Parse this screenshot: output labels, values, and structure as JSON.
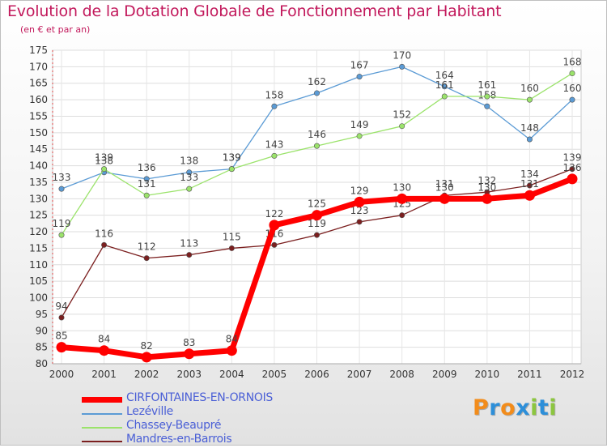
{
  "title": "Evolution de la Dotation Globale de Fonctionnement par Habitant",
  "subtitle": "(en € et par an)",
  "logo": {
    "letters": [
      "P",
      "r",
      "o",
      "x",
      "i",
      "t",
      "i"
    ],
    "colors": [
      "#f28c1b",
      "#2d8fd9",
      "#f28c1b",
      "#2d8fd9",
      "#8cc63f",
      "#2d8fd9",
      "#8cc63f"
    ]
  },
  "chart_data": {
    "type": "line",
    "title": "Evolution de la Dotation Globale de Fonctionnement par Habitant",
    "subtitle": "(en € et par an)",
    "x": [
      "2000",
      "2001",
      "2002",
      "2003",
      "2004",
      "2005",
      "2006",
      "2007",
      "2008",
      "2009",
      "2010",
      "2011",
      "2012"
    ],
    "ylim": [
      80,
      175
    ],
    "yticks": [
      80,
      85,
      90,
      95,
      100,
      105,
      110,
      115,
      120,
      125,
      130,
      135,
      140,
      145,
      150,
      155,
      160,
      165,
      170,
      175
    ],
    "grid": true,
    "legend": "bottom",
    "series": [
      {
        "name": "Lezéville",
        "color": "#5b9bd5",
        "values": [
          133,
          138,
          136,
          138,
          139,
          158,
          162,
          167,
          170,
          164,
          158,
          148,
          160
        ]
      },
      {
        "name": "Chassey-Beaupré",
        "color": "#9be36b",
        "values": [
          119,
          139,
          131,
          133,
          139,
          143,
          146,
          149,
          152,
          161,
          161,
          160,
          168
        ]
      },
      {
        "name": "Mandres-en-Barrois",
        "color": "#7b1f1f",
        "values": [
          94,
          116,
          112,
          113,
          115,
          116,
          119,
          123,
          125,
          131,
          132,
          134,
          139
        ]
      },
      {
        "name": "CIRFONTAINES-EN-ORNOIS",
        "color": "#ff0000",
        "values": [
          85,
          84,
          82,
          83,
          84,
          122,
          125,
          129,
          130,
          130,
          130,
          131,
          136
        ]
      }
    ],
    "legend_order": [
      "CIRFONTAINES-EN-ORNOIS",
      "Lezéville",
      "Chassey-Beaupré",
      "Mandres-en-Barrois"
    ]
  }
}
